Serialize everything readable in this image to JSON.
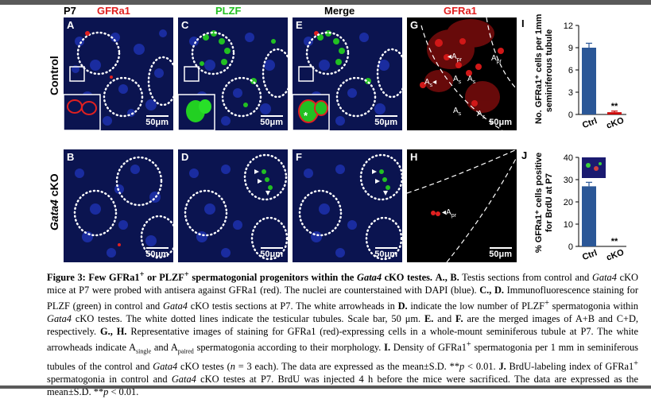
{
  "figure": {
    "headers": {
      "p7": "P7",
      "gfra1_col1": "GFRa1",
      "plzf": "PLZF",
      "merge": "Merge",
      "gfra1_col4": "GFRa1"
    },
    "row_labels": {
      "control": "Control",
      "gata4": "Gata4",
      "cko": " cKO"
    },
    "panels": {
      "A": {
        "letter": "A",
        "scale": "50μm"
      },
      "C": {
        "letter": "C",
        "scale": "50μm"
      },
      "E": {
        "letter": "E",
        "scale": "50μm",
        "star": "*"
      },
      "G": {
        "letter": "G",
        "scale": "50μm"
      },
      "B": {
        "letter": "B",
        "scale": "50μm"
      },
      "D": {
        "letter": "D",
        "scale": "50μm"
      },
      "F": {
        "letter": "F",
        "scale": "50μm"
      },
      "H": {
        "letter": "H",
        "scale": "50μm"
      }
    },
    "cell_labels": {
      "apr": "A",
      "apr_sub": "pr",
      "as": "A",
      "as_sub": "s"
    }
  },
  "chart_data": [
    {
      "panel": "I",
      "type": "bar",
      "categories": [
        "Ctrl",
        "cKO"
      ],
      "values": [
        9.0,
        0.3
      ],
      "errors": [
        0.6,
        0.15
      ],
      "colors": [
        "#2b5797",
        "#cc0000"
      ],
      "ylim": [
        0,
        12
      ],
      "yticks": [
        "0",
        "3",
        "6",
        "9",
        "12"
      ],
      "ylabel_line1": "No. GFRa1⁺ cells per 1mm",
      "ylabel_line2": "seminiferous tubule",
      "annotation": "**"
    },
    {
      "panel": "J",
      "type": "bar",
      "categories": [
        "Ctrl",
        "cKO"
      ],
      "values": [
        27,
        0
      ],
      "errors": [
        1.8,
        0
      ],
      "colors": [
        "#2b5797",
        "#2b5797"
      ],
      "ylim": [
        0,
        40
      ],
      "yticks": [
        "0",
        "10",
        "20",
        "30",
        "40"
      ],
      "ylabel_line1": "% GFRa1⁺ cells positive",
      "ylabel_line2": "for BrdU at P7",
      "annotation": "**"
    }
  ],
  "caption": {
    "title": "Figure 3: Few GFRa1⁺ or PLZF⁺ spermatogonial progenitors within the Gata4 cKO testes.",
    "t1": "Figure 3: Few GFRa1",
    "t2": " or PLZF",
    "t3": " spermatogonial progenitors within the ",
    "t4": "Gata4",
    "t5": " cKO testes.",
    "sup": "+",
    "ab": "A., B.",
    "s1": " Testis sections from control and ",
    "gata4": "Gata4",
    "s2": " cKO mice at P7 were probed with antisera against GFRa1 (red). The nuclei are counterstained with DAPI (blue). ",
    "cd": "C., D.",
    "s3": " Immunofluorescence staining for PLZF (green) in control and ",
    "s4": " cKO testis sections at P7. The white arrowheads in ",
    "d": "D.",
    "s5": " indicate the low number of PLZF",
    "s6": " spermatogonia within ",
    "s7": " cKO testes. The white dotted lines indicate the testicular tubules. Scale bar, 50 μm. ",
    "e": "E.",
    "s8": " and ",
    "f": "F.",
    "s9": " are the merged images of A+B and C+D, respectively. ",
    "gh": "G., H.",
    "s10": " Representative images of staining for GFRa1 (red)-expressing cells in a whole-mount seminiferous tubule at P7. The white arrowheads indicate A",
    "single": "single",
    "s11": " and A",
    "paired": "paired",
    "s12": " spermatogonia according to their morphology. ",
    "i": "I.",
    "s13": " Density of GFRa1",
    "s14": " spermatogonia per 1 mm in seminiferous tubules of the control and ",
    "s15": " cKO testes (",
    "n": "n",
    "s16": " = 3 each). The data are expressed as the mean±S.D. **",
    "p": "p",
    "s17": " < 0.01. ",
    "j": "J.",
    "s18": " BrdU-labeling index of GFRa1",
    "s19": " spermatogonia in control and ",
    "s20": " cKO testes at P7. BrdU was injected 4 h before the mice were sacrificed. The data are expressed as the mean±S.D. **",
    "s21": " < 0.01."
  }
}
